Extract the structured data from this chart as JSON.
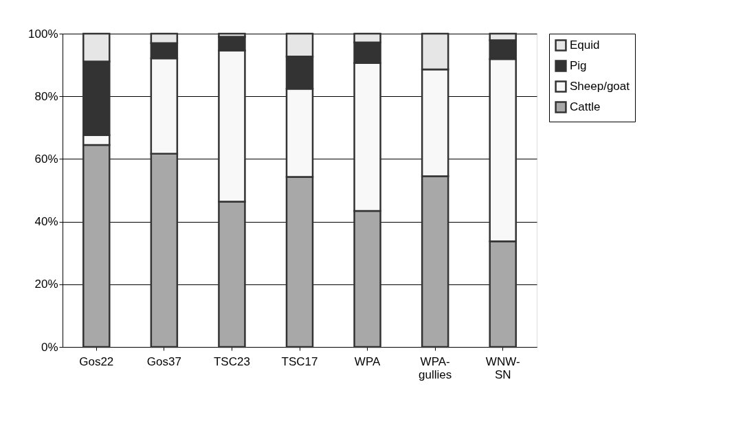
{
  "chart_data": {
    "type": "bar",
    "stacked": true,
    "categories": [
      "Gos22",
      "Gos37",
      "TSC23",
      "TSC17",
      "WPA",
      "WPA-gullies",
      "WNW-SN"
    ],
    "series": [
      {
        "name": "Cattle",
        "color": "#a8a8a8",
        "values": [
          64.5,
          61.7,
          46.4,
          54.3,
          43.4,
          54.5,
          33.7
        ]
      },
      {
        "name": "Sheep/goat",
        "color": "#f8f8f8",
        "values": [
          3.1,
          30.4,
          48.2,
          28.1,
          47.2,
          34.1,
          58.2
        ]
      },
      {
        "name": "Pig",
        "color": "#333333",
        "values": [
          23.5,
          4.9,
          4.4,
          10.3,
          6.6,
          0,
          6.0
        ]
      },
      {
        "name": "Equid",
        "color": "#e6e6e6",
        "values": [
          8.9,
          3.0,
          1.0,
          7.3,
          2.8,
          11.4,
          2.1
        ]
      }
    ],
    "ylim": [
      0,
      100
    ],
    "yticks": [
      {
        "value": 0,
        "label": "0%"
      },
      {
        "value": 20,
        "label": "20%"
      },
      {
        "value": 40,
        "label": "40%"
      },
      {
        "value": 60,
        "label": "60%"
      },
      {
        "value": 80,
        "label": "80%"
      },
      {
        "value": 100,
        "label": "100%"
      }
    ],
    "grid": "y",
    "legend": "right"
  }
}
